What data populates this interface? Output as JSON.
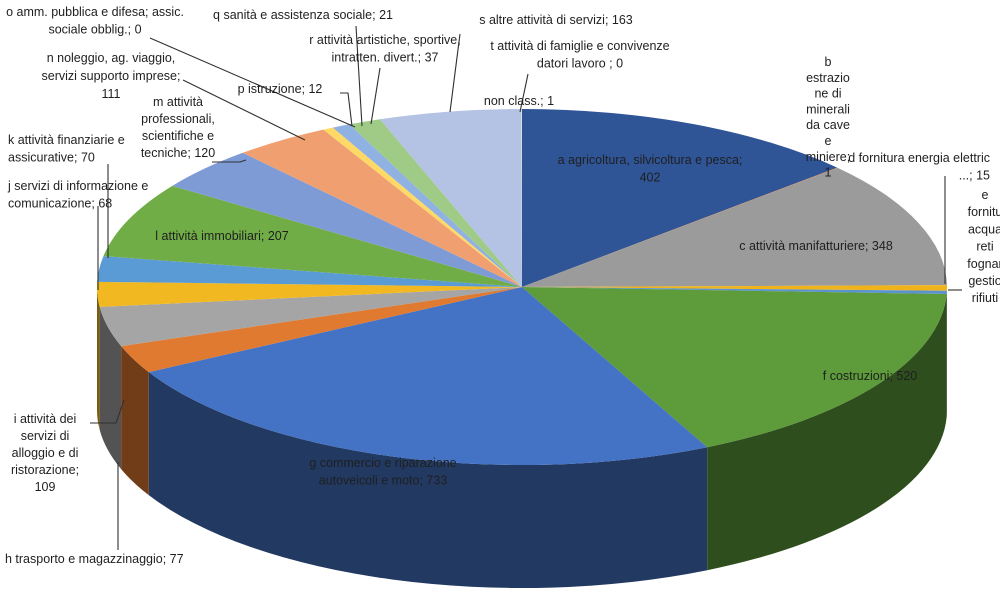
{
  "chart_data": {
    "type": "pie",
    "title": "",
    "series": [
      {
        "code": "a",
        "label": [
          "a agricoltura, silvicoltura e pesca;",
          "402"
        ],
        "value": 402,
        "color": "#2f5597"
      },
      {
        "code": "b",
        "label": [
          "b",
          "estrazio",
          "ne di",
          "minerali",
          "da cave",
          "e",
          "miniere;",
          "1"
        ],
        "value": 1,
        "color": "#dd7227"
      },
      {
        "code": "c",
        "label": [
          "c attività manifatturiere; 348"
        ],
        "value": 348,
        "color": "#9b9b9b"
      },
      {
        "code": "d",
        "label": [
          "d fornitura energia elettric",
          "...; 15"
        ],
        "value": 15,
        "color": "#f0b41a"
      },
      {
        "code": "e",
        "label": [
          "e",
          "fornitu",
          "acqua",
          "reti",
          "fognar",
          "gestio",
          "rifiuti"
        ],
        "value": 9,
        "color": "#5a93d0"
      },
      {
        "code": "f",
        "label": [
          "f costruzioni; 520"
        ],
        "value": 520,
        "color": "#5d9b3b"
      },
      {
        "code": "g",
        "label": [
          "g commercio e riparazione",
          "autoveicoli e moto; 733"
        ],
        "value": 733,
        "color": "#4472c4"
      },
      {
        "code": "h",
        "label": [
          "h trasporto e magazzinaggio; 77"
        ],
        "value": 77,
        "color": "#df7a30"
      },
      {
        "code": "i",
        "label": [
          "i attività dei",
          "servizi di",
          "alloggio e di",
          "ristorazione;",
          "109"
        ],
        "value": 109,
        "color": "#a5a5a5"
      },
      {
        "code": "j",
        "label": [
          "j servizi di informazione e",
          "comunicazione; 68"
        ],
        "value": 68,
        "color": "#f1b821"
      },
      {
        "code": "k",
        "label": [
          "k attività finanziarie e",
          "assicurative; 70"
        ],
        "value": 70,
        "color": "#5b9bd5"
      },
      {
        "code": "l",
        "label": [
          "l attività immobiliari; 207"
        ],
        "value": 207,
        "color": "#70ad47"
      },
      {
        "code": "m",
        "label": [
          "m attività",
          "professionali,",
          "scientifiche e",
          "tecniche; 120"
        ],
        "value": 120,
        "color": "#7f9bd6"
      },
      {
        "code": "n",
        "label": [
          "n noleggio, ag. viaggio,",
          "servizi supporto imprese;",
          "111"
        ],
        "value": 111,
        "color": "#f0a070"
      },
      {
        "code": "o",
        "label": [
          "o amm. pubblica e difesa; assic.",
          "sociale obblig.; 0"
        ],
        "value": 0,
        "color": "#c0c0c0"
      },
      {
        "code": "p",
        "label": [
          "p istruzione; 12"
        ],
        "value": 12,
        "color": "#ffd966"
      },
      {
        "code": "q",
        "label": [
          "q sanità e assistenza sociale; 21"
        ],
        "value": 21,
        "color": "#8fb2e2"
      },
      {
        "code": "r",
        "label": [
          "r attività artistiche, sportive,",
          "intratten. divert.; 37"
        ],
        "value": 37,
        "color": "#9fcb86"
      },
      {
        "code": "s",
        "label": [
          "s altre attività di servizi; 163"
        ],
        "value": 163,
        "color": "#b4c2e4"
      },
      {
        "code": "t",
        "label": [
          "t attività di famiglie e convivenze",
          "datori lavoro ; 0"
        ],
        "value": 0,
        "color": "#e8c7a8"
      },
      {
        "code": "u",
        "label": [
          "non class.; 1"
        ],
        "value": 1,
        "color": "#d9d9d9"
      }
    ]
  }
}
